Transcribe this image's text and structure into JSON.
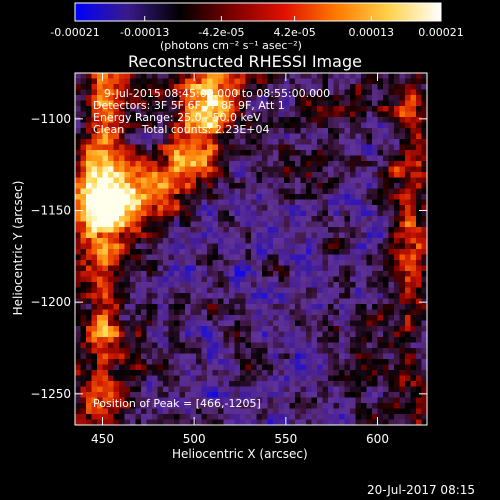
{
  "colorbar": {
    "tick_labels": [
      "-0.00021",
      "-0.00013",
      "-4.2e-05",
      "4.2e-05",
      "0.00013",
      "0.00021"
    ],
    "tick_values": [
      -0.00021,
      -0.00013,
      -4.2e-05,
      4.2e-05,
      0.00013,
      0.00021
    ],
    "range": [
      -0.00021,
      0.00021
    ],
    "units_label": "(photons cm⁻² s⁻¹ asec⁻²)",
    "stops": [
      "#0000ff",
      "#3a1a8a",
      "#000000",
      "#7a0000",
      "#e01000",
      "#ff7a00",
      "#ffd24a",
      "#ffffff"
    ]
  },
  "chart_data": {
    "type": "heatmap",
    "title": "Reconstructed RHESSI Image",
    "xlabel": "Heliocentric X (arcsec)",
    "ylabel": "Heliocentric Y (arcsec)",
    "xlim": [
      435,
      627
    ],
    "ylim": [
      -1267,
      -1075
    ],
    "x_ticks": [
      450,
      500,
      550,
      600
    ],
    "y_ticks": [
      -1100,
      -1150,
      -1200,
      -1250
    ],
    "x_tick_labels": [
      "450",
      "500",
      "550",
      "600"
    ],
    "y_tick_labels": [
      "−1100",
      "−1150",
      "−1200",
      "−1250"
    ],
    "annotations": [
      "9-Jul-2015 08:45:00.000 to 08:55:00.000",
      "Detectors: 3F 5F 6F 7F 8F 9F, Att 1",
      "Energy Range: 25.0 - 50.0 keV",
      "Clean     Total counts: 2.23E+04"
    ],
    "peak_label": "Position of Peak = [466,-1205]",
    "peak_position": [
      466,
      -1205
    ]
  },
  "footer": {
    "timestamp": "20-Jul-2017 08:15"
  }
}
